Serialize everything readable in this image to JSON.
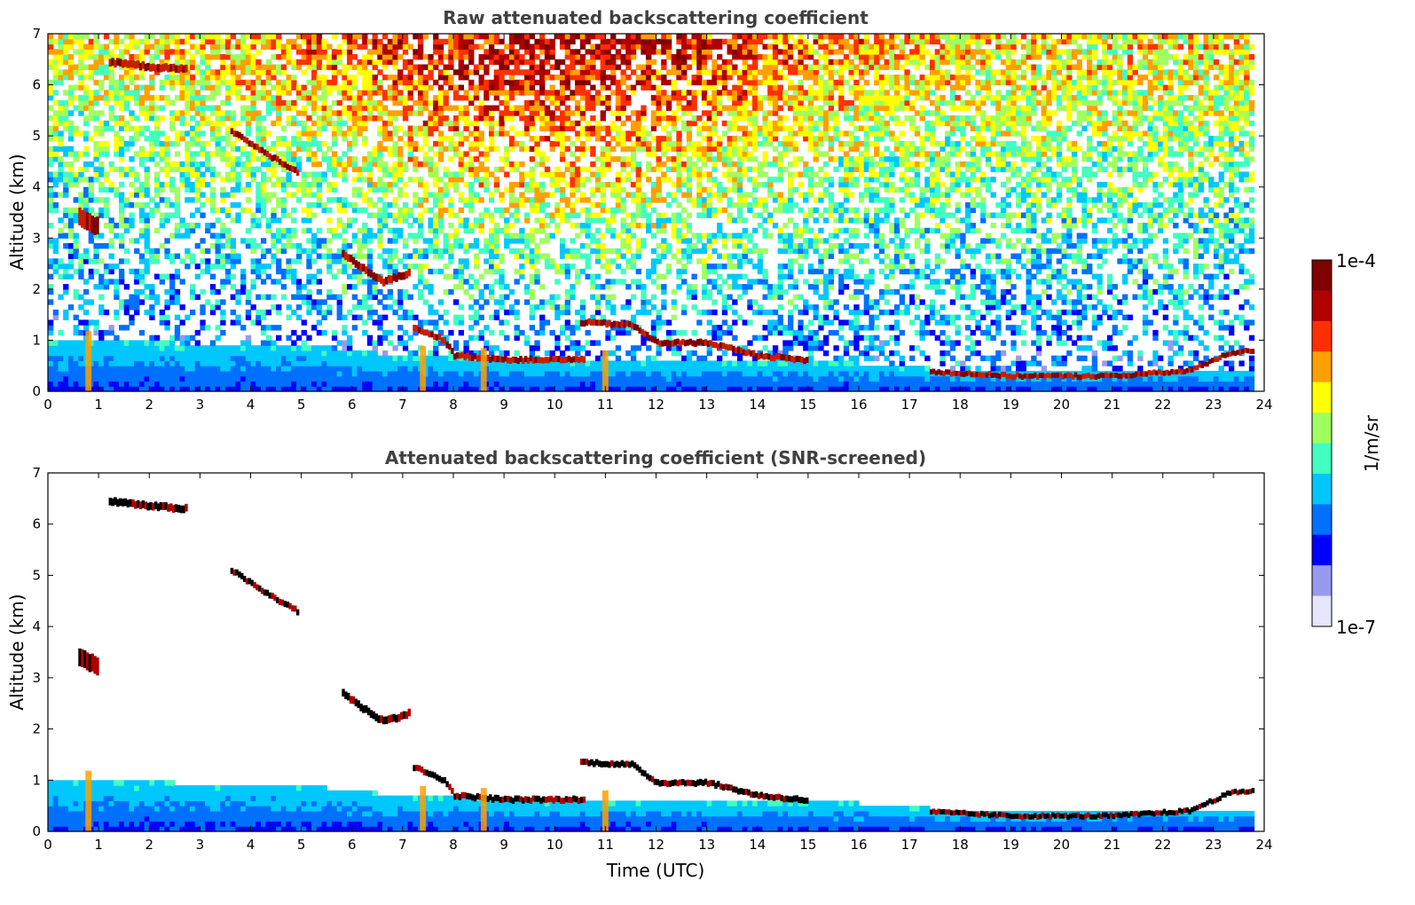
{
  "chart_data": [
    {
      "type": "heatmap",
      "title": "Raw attenuated backscattering coefficient",
      "xlabel": "",
      "ylabel": "Altitude (km)",
      "xlim": [
        0,
        24
      ],
      "ylim": [
        0,
        7
      ],
      "xticks": [
        "0",
        "1",
        "2",
        "3",
        "4",
        "5",
        "6",
        "7",
        "8",
        "9",
        "10",
        "11",
        "12",
        "13",
        "14",
        "15",
        "16",
        "17",
        "18",
        "19",
        "20",
        "21",
        "22",
        "23",
        "24"
      ],
      "yticks": [
        "0",
        "1",
        "2",
        "3",
        "4",
        "5",
        "6",
        "7"
      ],
      "grid": false,
      "screened": false,
      "layers": [
        {
          "kind": "boundary-layer",
          "t0": 0,
          "t1": 23.8,
          "top_km": [
            [
              0,
              1.0
            ],
            [
              5,
              0.9
            ],
            [
              7,
              0.7
            ],
            [
              10,
              0.6
            ],
            [
              13,
              0.6
            ],
            [
              16,
              0.55
            ],
            [
              17.4,
              0.45
            ],
            [
              23.8,
              0.4
            ]
          ]
        },
        {
          "kind": "cloud",
          "t0": 7.2,
          "t1": 10.6,
          "alt_km": [
            [
              7.2,
              1.25
            ],
            [
              7.8,
              1.0
            ],
            [
              8,
              0.7
            ],
            [
              9,
              0.62
            ],
            [
              10.6,
              0.62
            ]
          ],
          "thick_km": 0.12
        },
        {
          "kind": "cloud",
          "t0": 10.5,
          "t1": 15.0,
          "alt_km": [
            [
              10.5,
              1.35
            ],
            [
              11.5,
              1.3
            ],
            [
              12,
              0.95
            ],
            [
              13,
              0.95
            ],
            [
              14,
              0.7
            ],
            [
              15,
              0.6
            ]
          ],
          "thick_km": 0.12
        },
        {
          "kind": "cloud",
          "t0": 17.4,
          "t1": 23.8,
          "alt_km": [
            [
              17.4,
              0.38
            ],
            [
              19,
              0.3
            ],
            [
              21,
              0.3
            ],
            [
              22.5,
              0.4
            ],
            [
              23.3,
              0.75
            ],
            [
              23.8,
              0.8
            ]
          ],
          "thick_km": 0.1
        },
        {
          "kind": "cloud",
          "t0": 5.8,
          "t1": 7.1,
          "alt_km": [
            [
              5.8,
              2.7
            ],
            [
              6.2,
              2.4
            ],
            [
              6.6,
              2.15
            ],
            [
              7.1,
              2.3
            ]
          ],
          "thick_km": 0.15
        },
        {
          "kind": "cloud",
          "t0": 1.2,
          "t1": 2.7,
          "alt_km": [
            [
              1.2,
              6.45
            ],
            [
              2.0,
              6.35
            ],
            [
              2.7,
              6.3
            ]
          ],
          "thick_km": 0.15
        },
        {
          "kind": "cloud",
          "t0": 3.6,
          "t1": 4.9,
          "alt_km": [
            [
              3.6,
              5.1
            ],
            [
              4.2,
              4.7
            ],
            [
              4.9,
              4.3
            ]
          ],
          "thick_km": 0.12
        },
        {
          "kind": "cloud",
          "t0": 0.6,
          "t1": 1.0,
          "alt_km": [
            [
              0.6,
              3.4
            ],
            [
              1.0,
              3.2
            ]
          ],
          "thick_km": 0.35
        }
      ],
      "precip_streaks_utc": [
        0.8,
        7.4,
        8.6,
        11.0
      ]
    },
    {
      "type": "heatmap",
      "title": "Attenuated backscattering coefficient (SNR-screened)",
      "xlabel": "Time (UTC)",
      "ylabel": "Altitude (km)",
      "xlim": [
        0,
        24
      ],
      "ylim": [
        0,
        7
      ],
      "xticks": [
        "0",
        "1",
        "2",
        "3",
        "4",
        "5",
        "6",
        "7",
        "8",
        "9",
        "10",
        "11",
        "12",
        "13",
        "14",
        "15",
        "16",
        "17",
        "18",
        "19",
        "20",
        "21",
        "22",
        "23",
        "24"
      ],
      "yticks": [
        "0",
        "1",
        "2",
        "3",
        "4",
        "5",
        "6",
        "7"
      ],
      "grid": false,
      "screened": true
    }
  ],
  "colorbar": {
    "label": "1/m/sr",
    "max_label": "1e-4",
    "min_label": "1e-7",
    "scale": "log",
    "range": [
      1e-07,
      0.0001
    ],
    "colors": [
      "#e6e6fa",
      "#9999ee",
      "#0000ff",
      "#0070ff",
      "#00c8ff",
      "#40ffc0",
      "#a0ff60",
      "#ffff00",
      "#ffa000",
      "#ff3000",
      "#b00000",
      "#800000"
    ]
  }
}
